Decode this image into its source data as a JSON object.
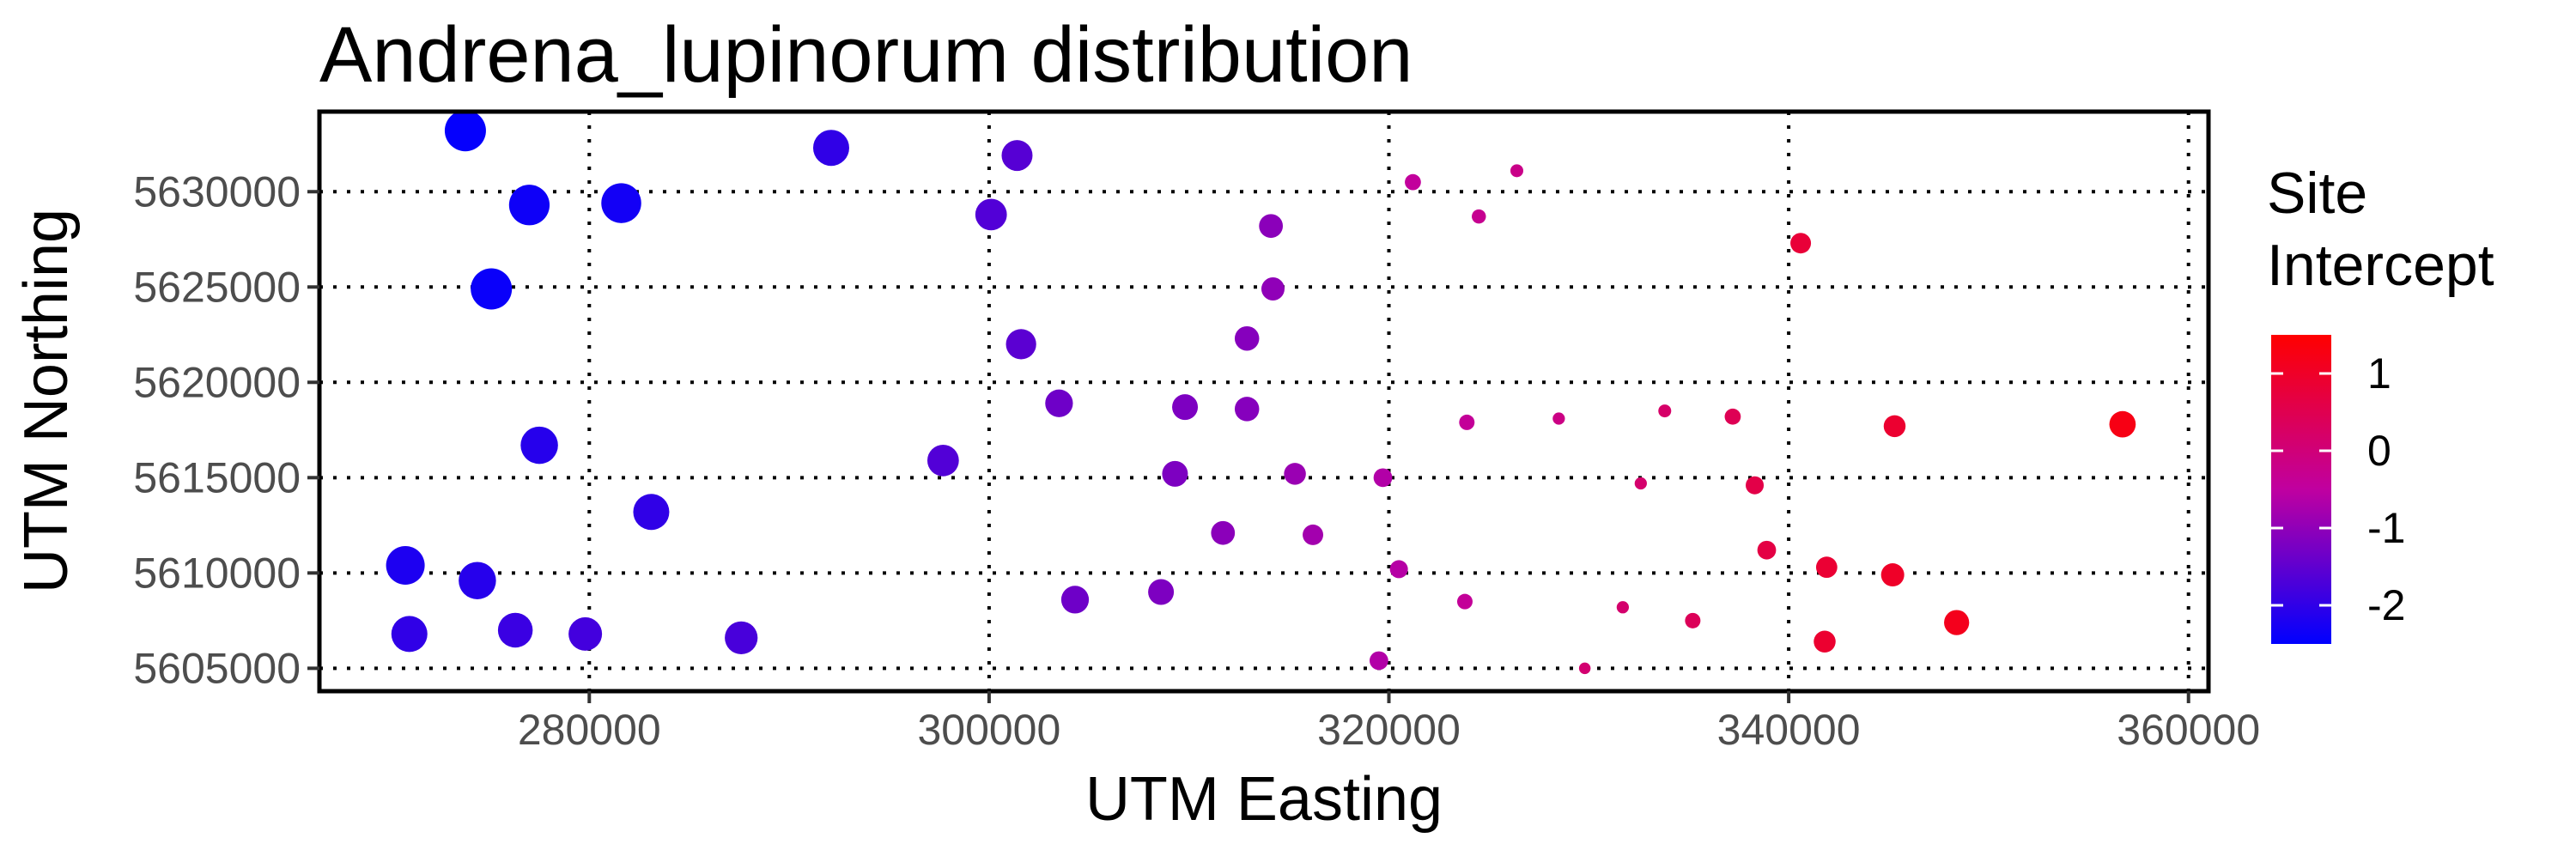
{
  "chart_data": {
    "type": "scatter",
    "title": "Andrena_lupinorum distribution",
    "xlabel": "UTM Easting",
    "ylabel": "UTM Northing",
    "xlim": [
      266500,
      361000
    ],
    "ylim": [
      5603800,
      5634200
    ],
    "x_ticks": [
      280000,
      300000,
      320000,
      340000,
      360000
    ],
    "y_ticks": [
      5605000,
      5610000,
      5615000,
      5620000,
      5625000,
      5630000
    ],
    "x_tick_labels": [
      "280000",
      "300000",
      "320000",
      "340000",
      "360000"
    ],
    "y_tick_labels": [
      "5605000",
      "5610000",
      "5615000",
      "5620000",
      "5625000",
      "5630000"
    ],
    "grid": true,
    "legend": {
      "title_lines": [
        "Site",
        "Intercept"
      ],
      "placement": "right",
      "range": [
        -2.5,
        1.5
      ],
      "ticks": [
        1,
        0,
        -1,
        -2
      ],
      "tick_labels": [
        "1",
        "0",
        "-1",
        "-2"
      ],
      "color_high": "#FF0000",
      "color_low": "#0000FF"
    },
    "points": [
      {
        "x": 273800,
        "y": 5633200,
        "value": -2.45
      },
      {
        "x": 277000,
        "y": 5629300,
        "value": -2.35
      },
      {
        "x": 281600,
        "y": 5629400,
        "value": -2.3
      },
      {
        "x": 275100,
        "y": 5624900,
        "value": -2.4
      },
      {
        "x": 292100,
        "y": 5632300,
        "value": -2.0
      },
      {
        "x": 301400,
        "y": 5631900,
        "value": -1.6
      },
      {
        "x": 300100,
        "y": 5628800,
        "value": -1.65
      },
      {
        "x": 301600,
        "y": 5622000,
        "value": -1.55
      },
      {
        "x": 321200,
        "y": 5630500,
        "value": -0.45
      },
      {
        "x": 326400,
        "y": 5631100,
        "value": -0.2
      },
      {
        "x": 324500,
        "y": 5628700,
        "value": -0.3
      },
      {
        "x": 314100,
        "y": 5628200,
        "value": -1.05
      },
      {
        "x": 314200,
        "y": 5624900,
        "value": -1.0
      },
      {
        "x": 340600,
        "y": 5627300,
        "value": 0.8
      },
      {
        "x": 312900,
        "y": 5622300,
        "value": -1.1
      },
      {
        "x": 303500,
        "y": 5618900,
        "value": -1.35
      },
      {
        "x": 309800,
        "y": 5618700,
        "value": -1.2
      },
      {
        "x": 312900,
        "y": 5618600,
        "value": -1.1
      },
      {
        "x": 277500,
        "y": 5616700,
        "value": -2.1
      },
      {
        "x": 297700,
        "y": 5615900,
        "value": -1.65
      },
      {
        "x": 309300,
        "y": 5615200,
        "value": -1.2
      },
      {
        "x": 315300,
        "y": 5615200,
        "value": -0.9
      },
      {
        "x": 319700,
        "y": 5615000,
        "value": -0.65
      },
      {
        "x": 323900,
        "y": 5617900,
        "value": -0.4
      },
      {
        "x": 328500,
        "y": 5618100,
        "value": -0.15
      },
      {
        "x": 333800,
        "y": 5618500,
        "value": 0.2
      },
      {
        "x": 337200,
        "y": 5618200,
        "value": 0.45
      },
      {
        "x": 345300,
        "y": 5617700,
        "value": 0.9
      },
      {
        "x": 356700,
        "y": 5617800,
        "value": 1.25
      },
      {
        "x": 283100,
        "y": 5613200,
        "value": -2.0
      },
      {
        "x": 332600,
        "y": 5614700,
        "value": 0.15
      },
      {
        "x": 338300,
        "y": 5614600,
        "value": 0.6
      },
      {
        "x": 311700,
        "y": 5612100,
        "value": -1.05
      },
      {
        "x": 316200,
        "y": 5612000,
        "value": -0.8
      },
      {
        "x": 270800,
        "y": 5610400,
        "value": -2.2
      },
      {
        "x": 274400,
        "y": 5609600,
        "value": -2.1
      },
      {
        "x": 320500,
        "y": 5610200,
        "value": -0.6
      },
      {
        "x": 338900,
        "y": 5611200,
        "value": 0.65
      },
      {
        "x": 341900,
        "y": 5610300,
        "value": 0.85
      },
      {
        "x": 345200,
        "y": 5609900,
        "value": 1.0
      },
      {
        "x": 304300,
        "y": 5608600,
        "value": -1.35
      },
      {
        "x": 308600,
        "y": 5609000,
        "value": -1.2
      },
      {
        "x": 323800,
        "y": 5608500,
        "value": -0.4
      },
      {
        "x": 331700,
        "y": 5608200,
        "value": 0.15
      },
      {
        "x": 335200,
        "y": 5607500,
        "value": 0.4
      },
      {
        "x": 348400,
        "y": 5607400,
        "value": 1.15
      },
      {
        "x": 271000,
        "y": 5606800,
        "value": -2.0
      },
      {
        "x": 276300,
        "y": 5607000,
        "value": -1.9
      },
      {
        "x": 279800,
        "y": 5606800,
        "value": -1.8
      },
      {
        "x": 287600,
        "y": 5606600,
        "value": -1.75
      },
      {
        "x": 319500,
        "y": 5605400,
        "value": -0.65
      },
      {
        "x": 329800,
        "y": 5605000,
        "value": 0.1
      },
      {
        "x": 341800,
        "y": 5606400,
        "value": 0.9
      }
    ]
  }
}
